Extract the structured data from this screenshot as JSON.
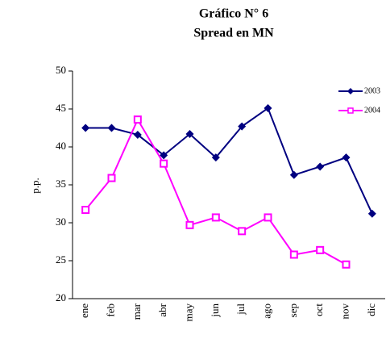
{
  "chart_data": {
    "type": "line",
    "title": "Gráfico N° 6",
    "subtitle": "Spread en MN",
    "y_label": "p.p.",
    "categories": [
      "ene",
      "feb",
      "mar",
      "abr",
      "may",
      "jun",
      "jul",
      "ago",
      "sep",
      "oct",
      "nov",
      "dic"
    ],
    "series": [
      {
        "name": "2003",
        "color": "#000080",
        "marker": "diamond",
        "values": [
          42.5,
          42.5,
          41.6,
          38.9,
          41.7,
          38.6,
          42.7,
          45.1,
          36.3,
          37.4,
          38.6,
          31.2
        ]
      },
      {
        "name": "2004",
        "color": "#ff00ff",
        "marker": "square",
        "values": [
          31.7,
          35.9,
          43.6,
          37.8,
          29.7,
          30.7,
          28.9,
          30.7,
          25.8,
          26.4,
          24.5,
          null
        ]
      }
    ],
    "ylim": [
      20,
      50
    ],
    "yticks": [
      20,
      25,
      30,
      35,
      40,
      45,
      50
    ],
    "grid": false,
    "legend": "top-right"
  }
}
